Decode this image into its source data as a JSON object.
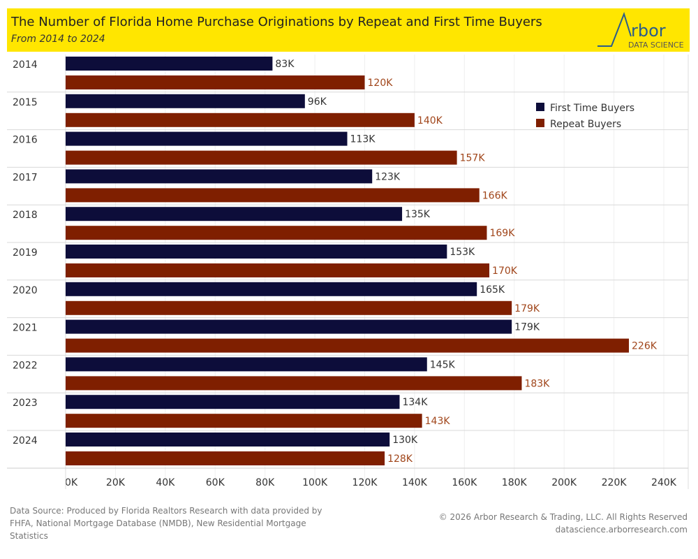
{
  "header": {
    "title": "The Number of Florida Home Purchase Originations by Repeat and First Time Buyers",
    "subtitle": "From 2014 to 2024",
    "logo_text": "Arbor",
    "logo_sub": "DATA SCIENCE"
  },
  "chart_data": {
    "type": "bar",
    "orientation": "horizontal",
    "categories": [
      "2014",
      "2015",
      "2016",
      "2017",
      "2018",
      "2019",
      "2020",
      "2021",
      "2022",
      "2023",
      "2024"
    ],
    "series": [
      {
        "name": "First Time Buyers",
        "color": "#0d0d3a",
        "values": [
          83,
          96,
          113,
          123,
          135,
          153,
          165,
          179,
          145,
          134,
          130
        ]
      },
      {
        "name": "Repeat Buyers",
        "color": "#7f1f00",
        "values": [
          120,
          140,
          157,
          166,
          169,
          170,
          179,
          226,
          183,
          143,
          128
        ]
      }
    ],
    "unit": "K",
    "xlim": [
      0,
      240
    ],
    "xticks": [
      "0K",
      "20K",
      "40K",
      "60K",
      "80K",
      "100K",
      "120K",
      "140K",
      "160K",
      "180K",
      "200K",
      "220K",
      "240K"
    ],
    "legend": "top-right"
  },
  "footer": {
    "source": [
      "Data Source: Produced by Florida Realtors Research  with data provided by",
      "FHFA, National Mortgage Database (NMDB), New Residential Mortgage",
      "Statistics"
    ],
    "copyright": "© 2026 Arbor Research & Trading, LLC. All Rights Reserved",
    "url": "datascience.arborresearch.com"
  }
}
